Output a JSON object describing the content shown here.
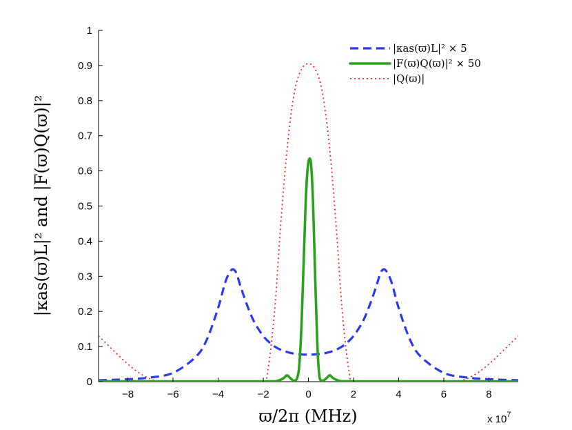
{
  "chart_data": {
    "type": "line",
    "xlabel": "ϖ/2π (MHz)",
    "ylabel": "|κas(ϖ)L|² and |F(ϖ)Q(ϖ)|²",
    "xlim": [
      -9.3,
      9.3
    ],
    "ylim": [
      0,
      1
    ],
    "x_multiplier_label": "x 10",
    "x_multiplier_exp": "7",
    "xticks": [
      -8,
      -6,
      -4,
      -2,
      0,
      2,
      4,
      6,
      8
    ],
    "xtick_labels": [
      "−8",
      "−6",
      "−4",
      "−2",
      "0",
      "2",
      "4",
      "6",
      "8"
    ],
    "yticks": [
      0,
      0.1,
      0.2,
      0.3,
      0.4,
      0.5,
      0.6,
      0.7,
      0.8,
      0.9,
      1
    ],
    "ytick_labels": [
      "0",
      "0.1",
      "0.2",
      "0.3",
      "0.4",
      "0.5",
      "0.6",
      "0.7",
      "0.8",
      "0.9",
      "1"
    ],
    "legend_position": "top-right",
    "series": [
      {
        "name": "|κas(ϖ)L|² × 5",
        "color": "#2a39f0",
        "style": "dashed",
        "x": [
          -9.3,
          -8,
          -7,
          -6,
          -5,
          -4.5,
          -4,
          -3.7,
          -3.5,
          -3.35,
          -3.2,
          -3,
          -2.7,
          -2.4,
          -2,
          -1.6,
          -1.2,
          -0.8,
          -0.4,
          0,
          0.4,
          0.8,
          1.2,
          1.6,
          2,
          2.4,
          2.7,
          3,
          3.2,
          3.35,
          3.5,
          3.7,
          4,
          4.5,
          5,
          6,
          7,
          8,
          9.3
        ],
        "values": [
          0.004,
          0.007,
          0.012,
          0.025,
          0.07,
          0.12,
          0.21,
          0.28,
          0.31,
          0.32,
          0.31,
          0.27,
          0.215,
          0.17,
          0.13,
          0.105,
          0.09,
          0.082,
          0.078,
          0.077,
          0.078,
          0.082,
          0.09,
          0.105,
          0.13,
          0.17,
          0.215,
          0.27,
          0.31,
          0.32,
          0.31,
          0.28,
          0.21,
          0.12,
          0.07,
          0.025,
          0.012,
          0.007,
          0.004
        ]
      },
      {
        "name": "|F(ϖ)Q(ϖ)|² × 50",
        "color": "#2aa11b",
        "style": "solid",
        "x": [
          -9.3,
          -2,
          -1.4,
          -1.1,
          -0.95,
          -0.8,
          -0.65,
          -0.5,
          -0.4,
          -0.3,
          -0.2,
          -0.1,
          0,
          0.1,
          0.2,
          0.3,
          0.4,
          0.5,
          0.65,
          0.8,
          0.95,
          1.1,
          1.4,
          2,
          9.3
        ],
        "values": [
          0.001,
          0.001,
          0.002,
          0.01,
          0.018,
          0.01,
          0.003,
          0.01,
          0.05,
          0.17,
          0.36,
          0.54,
          0.625,
          0.63,
          0.52,
          0.3,
          0.1,
          0.01,
          0.003,
          0.01,
          0.018,
          0.01,
          0.002,
          0.001,
          0.001
        ]
      },
      {
        "name": "|Q(ϖ)|",
        "color": "#ff1f1f",
        "style": "dotted",
        "x": [
          -9.3,
          -8.5,
          -8,
          -7.5,
          -7,
          -6.5,
          -5,
          -3,
          -2,
          -1.8,
          -1.5,
          -1.2,
          -0.9,
          -0.6,
          -0.3,
          0,
          0.3,
          0.6,
          0.9,
          1.2,
          1.5,
          1.8,
          2,
          3,
          5,
          6.5,
          7,
          7.5,
          8,
          8.5,
          9.3
        ],
        "values": [
          0.13,
          0.08,
          0.05,
          0.025,
          0.008,
          0.0,
          0.0,
          0.0,
          0.0,
          0.03,
          0.2,
          0.47,
          0.69,
          0.83,
          0.89,
          0.905,
          0.89,
          0.83,
          0.69,
          0.47,
          0.2,
          0.03,
          0.0,
          0.0,
          0.0,
          0.0,
          0.008,
          0.025,
          0.05,
          0.08,
          0.13
        ]
      }
    ]
  }
}
